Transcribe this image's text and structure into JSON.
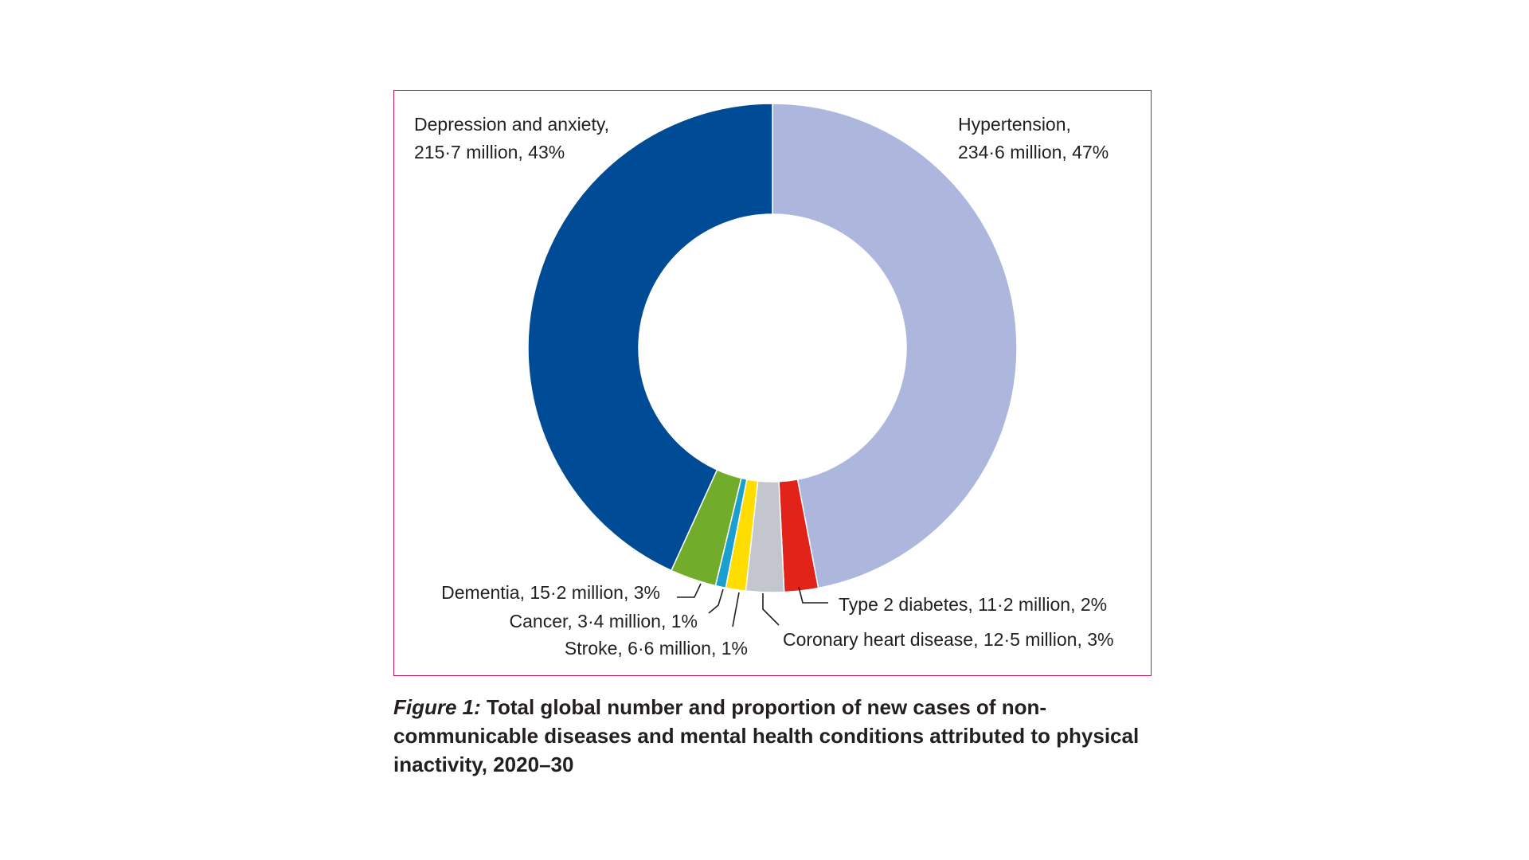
{
  "caption": {
    "figure_number": "Figure 1:",
    "text": "Total global number and proportion of new cases of non-communicable diseases and mental health conditions attributed to physical inactivity, 2020–30"
  },
  "chart_data": {
    "type": "pie",
    "donut": true,
    "title": "",
    "units": "million",
    "slices": [
      {
        "name": "Hypertension",
        "value": 234.6,
        "percent": 47,
        "color": "#adb6dc",
        "label_line1": "Hypertension,",
        "label_line2": "234·6 million, 47%"
      },
      {
        "name": "Type 2 diabetes",
        "value": 11.2,
        "percent": 2,
        "color": "#e2231a",
        "label_line1": "Type 2 diabetes, 11·2 million, 2%"
      },
      {
        "name": "Coronary heart disease",
        "value": 12.5,
        "percent": 3,
        "color": "#c3c6cc",
        "label_line1": "Coronary heart disease, 12·5 million, 3%"
      },
      {
        "name": "Stroke",
        "value": 6.6,
        "percent": 1,
        "color": "#ffdd00",
        "label_line1": "Stroke, 6·6 million, 1%"
      },
      {
        "name": "Cancer",
        "value": 3.4,
        "percent": 1,
        "color": "#1b9fd0",
        "label_line1": "Cancer, 3·4 million, 1%"
      },
      {
        "name": "Dementia",
        "value": 15.2,
        "percent": 3,
        "color": "#72ac2b",
        "label_line1": "Dementia, 15·2 million, 3%"
      },
      {
        "name": "Depression and anxiety",
        "value": 215.7,
        "percent": 43,
        "color": "#004b96",
        "label_line1": "Depression and anxiety,",
        "label_line2": "215·7 million, 43%"
      }
    ]
  }
}
